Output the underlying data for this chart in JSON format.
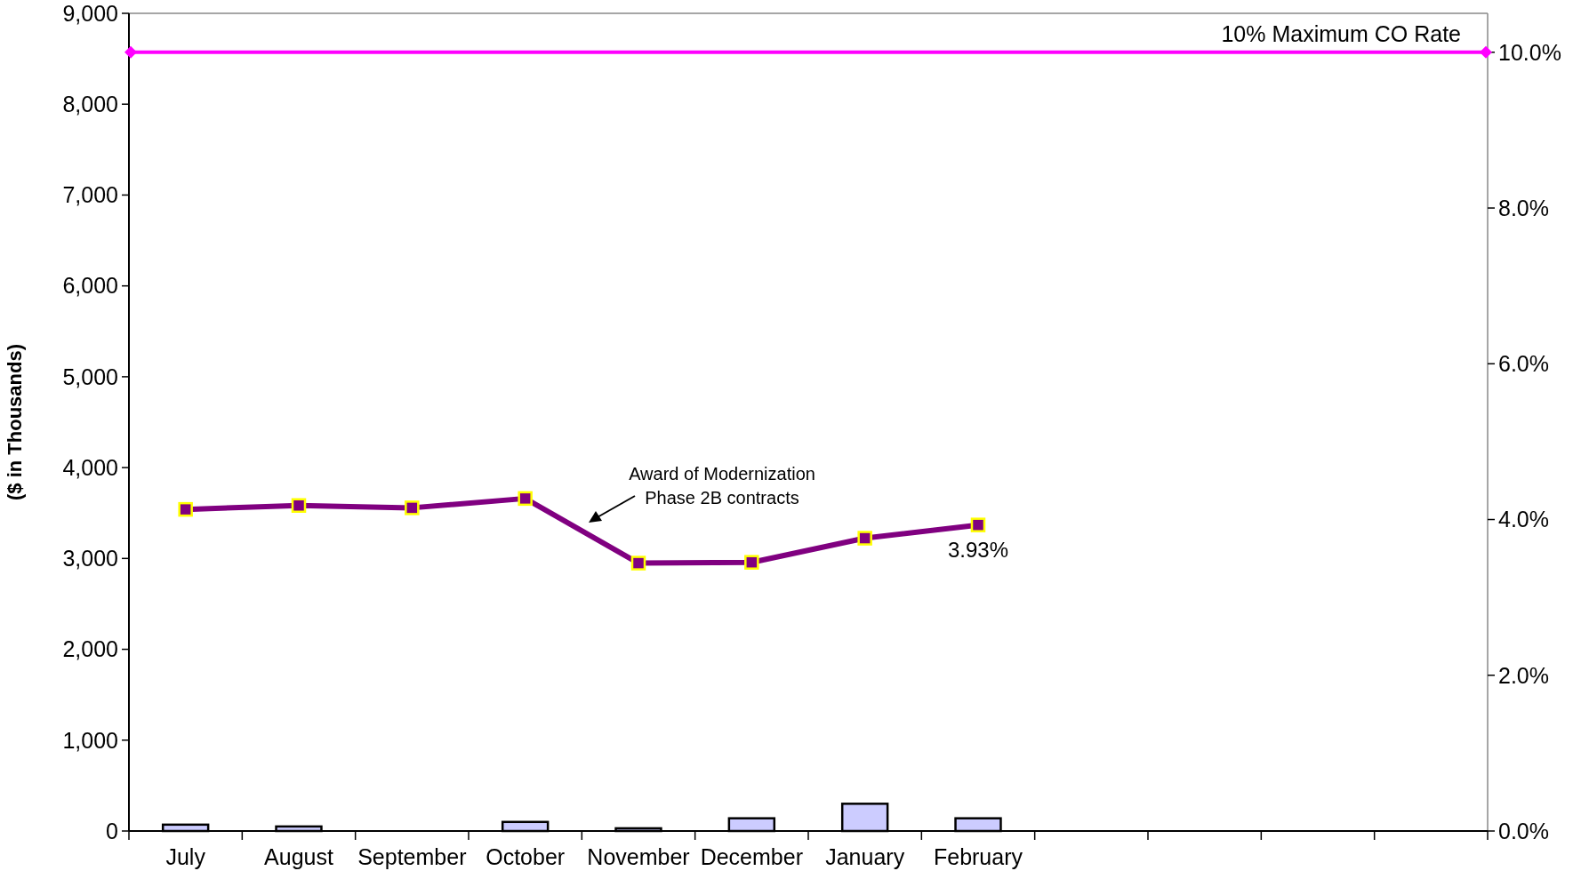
{
  "chart_data": {
    "type": "bar",
    "ylabel": "($ in Thousands)",
    "categories": [
      "July",
      "August",
      "September",
      "October",
      "November",
      "December",
      "January",
      "February",
      null,
      null,
      null,
      null
    ],
    "series": [
      {
        "color": "#ccccff",
        "values": [
          70,
          50,
          0,
          100,
          30,
          140,
          300,
          140,
          null,
          null,
          null,
          null
        ]
      },
      {
        "type": "line",
        "axis": "y2",
        "color": "#800080",
        "marker": "square",
        "values": [
          4.13,
          4.18,
          4.15,
          4.27,
          3.44,
          3.45,
          3.76,
          3.93,
          null,
          null,
          null,
          null
        ],
        "value_labels": [
          null,
          null,
          null,
          null,
          null,
          null,
          null,
          "3.93%",
          null,
          null,
          null,
          null
        ]
      }
    ],
    "ylim": [
      0,
      9000
    ],
    "yticks": [
      {
        "value": 0,
        "label": "0"
      },
      {
        "value": 1000,
        "label": "1,000"
      },
      {
        "value": 2000,
        "label": "2,000"
      },
      {
        "value": 3000,
        "label": "3,000"
      },
      {
        "value": 4000,
        "label": "4,000"
      },
      {
        "value": 5000,
        "label": "5,000"
      },
      {
        "value": 6000,
        "label": "6,000"
      },
      {
        "value": 7000,
        "label": "7,000"
      },
      {
        "value": 8000,
        "label": "8,000"
      },
      {
        "value": 9000,
        "label": "9,000"
      }
    ],
    "y2lim": [
      0,
      10.5
    ],
    "y2ticks": [
      {
        "value": 0,
        "label": "0.0%"
      },
      {
        "value": 2,
        "label": "2.0%"
      },
      {
        "value": 4,
        "label": "4.0%"
      },
      {
        "value": 6,
        "label": "6.0%"
      },
      {
        "value": 8,
        "label": "8.0%"
      },
      {
        "value": 10,
        "label": "10.0%"
      }
    ],
    "ref_lines": [
      {
        "axis": "y2",
        "value": 10,
        "label": "10% Maximum CO Rate",
        "color": "#ff00ff"
      }
    ],
    "annotations": [
      "Award of Modernization\nPhase 2B contracts"
    ],
    "grid": false
  }
}
